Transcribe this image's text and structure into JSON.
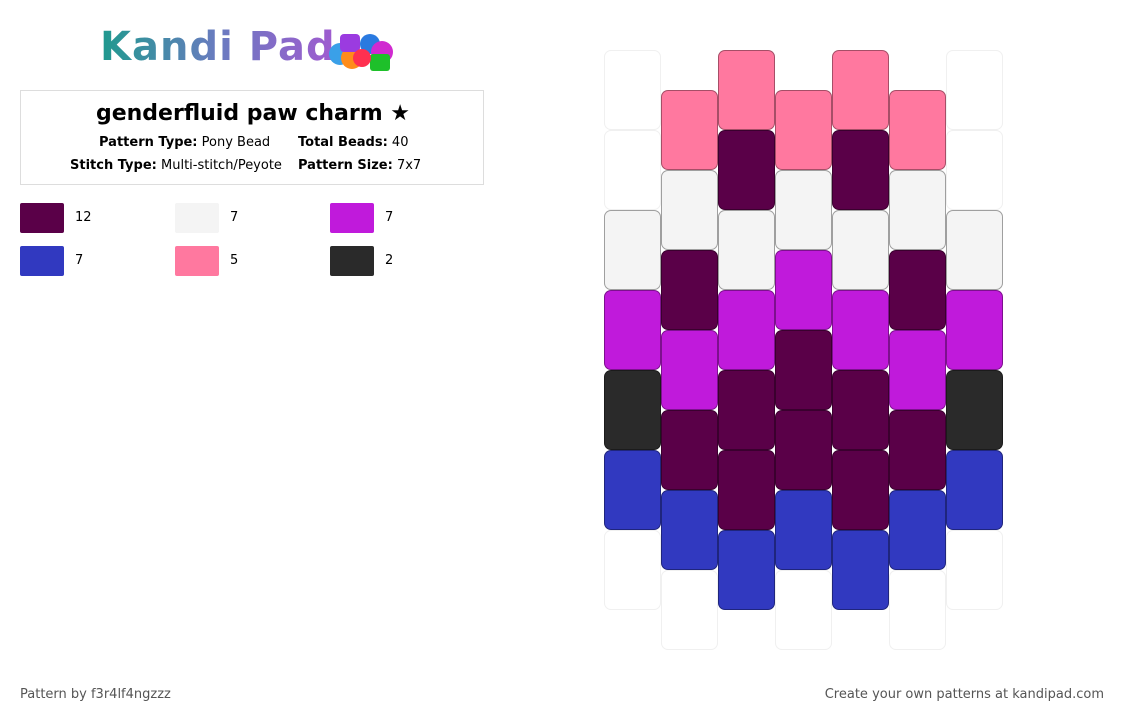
{
  "logo": "Kandi Pad",
  "header": {
    "title": "genderfluid paw charm ★",
    "info": [
      {
        "label": "Pattern Type:",
        "value": "Pony Bead"
      },
      {
        "label": "Total Beads:",
        "value": "40"
      },
      {
        "label": "Stitch Type:",
        "value": "Multi-stitch/Peyote"
      },
      {
        "label": "Pattern Size:",
        "value": "7x7"
      }
    ]
  },
  "legend": [
    {
      "color": "#5a0048",
      "count": 12
    },
    {
      "color": "#f4f4f4",
      "count": 7
    },
    {
      "color": "#c01adb",
      "count": 7
    },
    {
      "color": "#3139c0",
      "count": 7
    },
    {
      "color": "#ff789f",
      "count": 5
    },
    {
      "color": "#2a2a2a",
      "count": 2
    }
  ],
  "beads": {
    "columns": [
      [
        null,
        null,
        "#f4f4f4",
        "#c01adb",
        "#2a2a2a",
        "#3139c0",
        null
      ],
      [
        "#ff789f",
        "#f4f4f4",
        "#5a0048",
        "#c01adb",
        "#5a0048",
        "#3139c0",
        null
      ],
      [
        "#ff789f",
        "#5a0048",
        "#f4f4f4",
        "#c01adb",
        "#5a0048",
        "#5a0048",
        "#3139c0"
      ],
      [
        "#ff789f",
        "#f4f4f4",
        "#c01adb",
        "#5a0048",
        "#5a0048",
        "#3139c0",
        null
      ],
      [
        "#ff789f",
        "#5a0048",
        "#f4f4f4",
        "#c01adb",
        "#5a0048",
        "#5a0048",
        "#3139c0"
      ],
      [
        "#ff789f",
        "#f4f4f4",
        "#5a0048",
        "#c01adb",
        "#5a0048",
        "#3139c0",
        null
      ],
      [
        null,
        null,
        "#f4f4f4",
        "#c01adb",
        "#2a2a2a",
        "#3139c0",
        null
      ]
    ]
  },
  "footer": {
    "author": "Pattern by f3r4lf4ngzzz",
    "promo": "Create your own patterns at kandipad.com"
  }
}
